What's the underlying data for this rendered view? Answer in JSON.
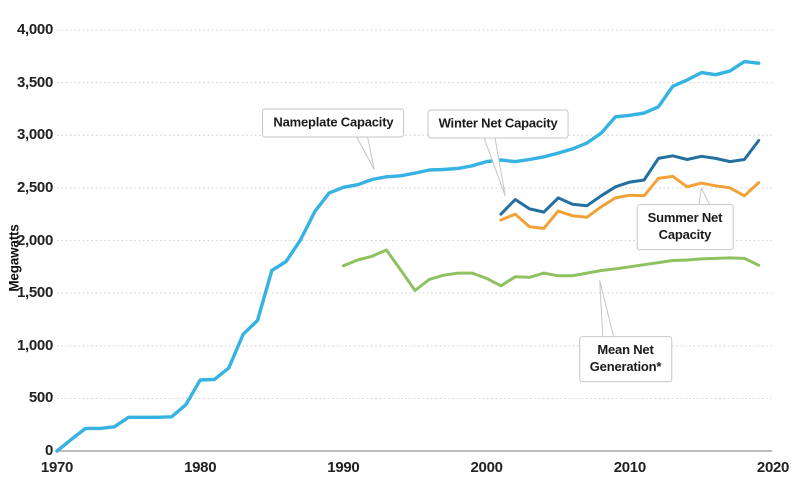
{
  "chart_data": {
    "type": "line",
    "title": "",
    "xlabel": "",
    "ylabel": "Megawatts",
    "xlim": [
      1970,
      2020
    ],
    "ylim": [
      0,
      4000
    ],
    "grid": "horizontal-dotted",
    "legend_position": "none-uses-callout-annotations",
    "yticks": [
      {
        "value": 0,
        "label": "0"
      },
      {
        "value": 500,
        "label": "500"
      },
      {
        "value": 1000,
        "label": "1,000"
      },
      {
        "value": 1500,
        "label": "1,500"
      },
      {
        "value": 2000,
        "label": "2,000"
      },
      {
        "value": 2500,
        "label": "2,500"
      },
      {
        "value": 3000,
        "label": "3,000"
      },
      {
        "value": 3500,
        "label": "3,500"
      },
      {
        "value": 4000,
        "label": "4,000"
      }
    ],
    "xticks": [
      {
        "value": 1970,
        "label": "1970"
      },
      {
        "value": 1980,
        "label": "1980"
      },
      {
        "value": 1990,
        "label": "1990"
      },
      {
        "value": 2000,
        "label": "2000"
      },
      {
        "value": 2010,
        "label": "2010"
      },
      {
        "value": 2020,
        "label": "2020"
      }
    ],
    "series": [
      {
        "name": "Nameplate Capacity",
        "color": "#36b3e2",
        "width": 3.4,
        "start_year": 1970,
        "values": [
          0,
          110,
          215,
          215,
          230,
          320,
          320,
          320,
          325,
          440,
          675,
          680,
          790,
          1110,
          1240,
          1715,
          1800,
          2005,
          2275,
          2450,
          2505,
          2530,
          2580,
          2605,
          2615,
          2640,
          2670,
          2675,
          2685,
          2710,
          2750,
          2765,
          2750,
          2770,
          2795,
          2830,
          2870,
          2925,
          3020,
          3175,
          3190,
          3210,
          3270,
          3465,
          3525,
          3595,
          3575,
          3610,
          3700,
          3685
        ]
      },
      {
        "name": "Winter Net Capacity",
        "color": "#236f9e",
        "width": 3,
        "start_year": 2001,
        "values": [
          2250,
          2390,
          2300,
          2270,
          2405,
          2345,
          2330,
          2425,
          2510,
          2555,
          2575,
          2780,
          2805,
          2770,
          2800,
          2780,
          2750,
          2770,
          2950
        ]
      },
      {
        "name": "Summer Net Capacity",
        "color": "#f1a236",
        "width": 3,
        "start_year": 2001,
        "values": [
          2195,
          2250,
          2130,
          2115,
          2280,
          2235,
          2220,
          2320,
          2405,
          2430,
          2425,
          2590,
          2610,
          2510,
          2545,
          2520,
          2500,
          2425,
          2550
        ]
      },
      {
        "name": "Mean Net Generation*",
        "color": "#8fc161",
        "width": 3,
        "start_year": 1990,
        "values": [
          1760,
          1815,
          1850,
          1910,
          1720,
          1525,
          1630,
          1670,
          1690,
          1690,
          1640,
          1570,
          1655,
          1650,
          1690,
          1665,
          1665,
          1690,
          1715,
          1730,
          1750,
          1770,
          1790,
          1810,
          1815,
          1825,
          1830,
          1835,
          1830,
          1765
        ]
      }
    ],
    "annotations": [
      {
        "text_lines": [
          "Nameplate Capacity"
        ],
        "anchor": {
          "year": 1989.3,
          "mw": 3115
        },
        "tail": {
          "edge": "bottom",
          "base_year": 1991.3,
          "tip_year": 1992.15,
          "tip_mw": 2675
        }
      },
      {
        "text_lines": [
          "Winter Net Capacity"
        ],
        "anchor": {
          "year": 2000.8,
          "mw": 3105
        },
        "tail": {
          "edge": "bottom",
          "base_year": 2000.2,
          "tip_year": 2001.3,
          "tip_mw": 2425
        }
      },
      {
        "text_lines": [
          "Summer Net",
          "Capacity"
        ],
        "anchor": {
          "year": 2013.85,
          "mw": 2130
        },
        "tail": {
          "edge": "top",
          "base_year": 2015.2,
          "tip_year": 2015.0,
          "tip_mw": 2495
        }
      },
      {
        "text_lines": [
          "Mean Net",
          "Generation*"
        ],
        "anchor": {
          "year": 2009.7,
          "mw": 870
        },
        "tail": {
          "edge": "top",
          "base_year": 2008.5,
          "tip_year": 2007.9,
          "tip_mw": 1620
        }
      }
    ],
    "colors": {
      "gridline": "#d4d4d4",
      "axis_line": "#b2b2b2",
      "tick_text": "#222222",
      "annotation_border": "#c6c6c6",
      "background": "#ffffff"
    }
  }
}
